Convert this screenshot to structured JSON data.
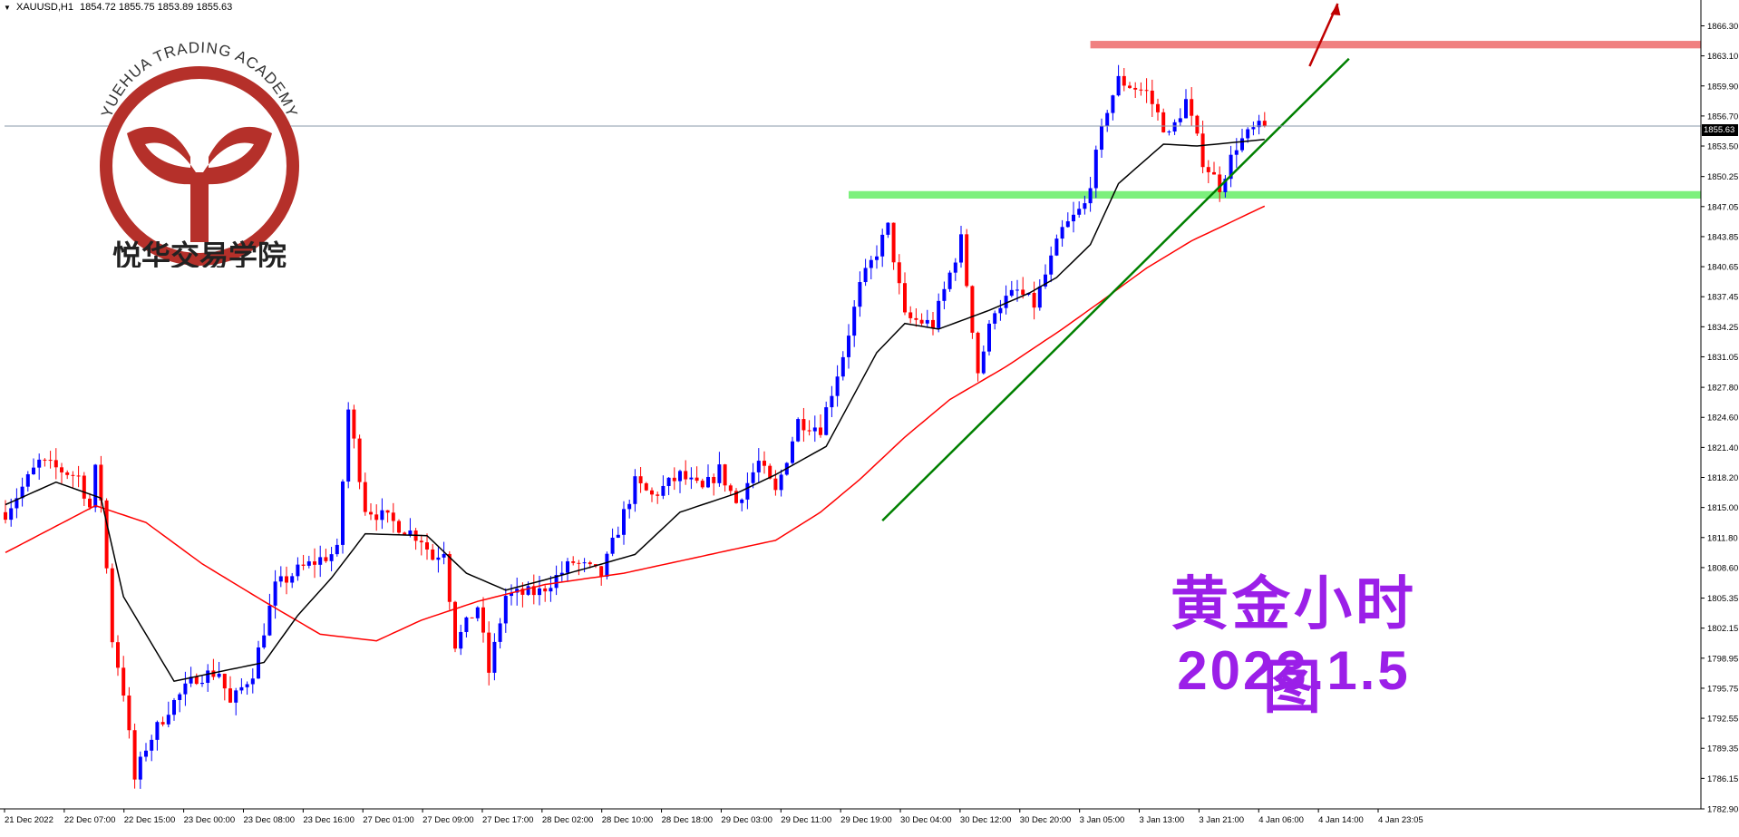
{
  "header": {
    "symbol": "XAUUSD,H1",
    "ohlc": "1854.72 1855.75 1853.89 1855.63"
  },
  "logo": {
    "arc_text": "YUEHUA TRADING ACADEMY",
    "chinese_text": "悦华交易学院",
    "color": "#b5302a"
  },
  "overlay": {
    "title": "黄金小时图",
    "date": "2023.1.5",
    "color": "#9b1fe8"
  },
  "current_price": "1855.63",
  "colors": {
    "bull": "#0000ff",
    "bear": "#ff0000",
    "ma_fast": "#000000",
    "ma_slow": "#ff0000",
    "trendline": "#008000",
    "resistance_zone": "#f08080",
    "support_zone": "#7cf07c",
    "arrow": "#c00000"
  },
  "chart_data": {
    "type": "candlestick",
    "symbol": "XAUUSD",
    "timeframe": "H1",
    "ylim": [
      1782.9,
      1867.7
    ],
    "y_ticks": [
      "1866.30",
      "1863.10",
      "1859.90",
      "1856.70",
      "1853.50",
      "1850.25",
      "1847.05",
      "1843.85",
      "1840.65",
      "1837.45",
      "1834.25",
      "1831.05",
      "1827.80",
      "1824.60",
      "1821.40",
      "1818.20",
      "1815.00",
      "1811.80",
      "1808.60",
      "1805.35",
      "1802.15",
      "1798.95",
      "1795.75",
      "1792.55",
      "1789.35",
      "1786.15",
      "1782.90"
    ],
    "x_labels": [
      "21 Dec 2022",
      "22 Dec 07:00",
      "22 Dec 15:00",
      "23 Dec 00:00",
      "23 Dec 08:00",
      "23 Dec 16:00",
      "27 Dec 01:00",
      "27 Dec 09:00",
      "27 Dec 17:00",
      "28 Dec 02:00",
      "28 Dec 10:00",
      "28 Dec 18:00",
      "29 Dec 03:00",
      "29 Dec 11:00",
      "29 Dec 19:00",
      "30 Dec 04:00",
      "30 Dec 12:00",
      "30 Dec 20:00",
      "3 Jan 05:00",
      "3 Jan 13:00",
      "3 Jan 21:00",
      "4 Jan 06:00",
      "4 Jan 14:00",
      "4 Jan 23:05"
    ],
    "bar_count": 230,
    "anchors": [
      [
        0,
        1814.5
      ],
      [
        6,
        1819.8
      ],
      [
        13,
        1818.3
      ],
      [
        15,
        1815.0
      ],
      [
        16,
        1818.9
      ],
      [
        17,
        1816.0
      ],
      [
        19,
        1801.0
      ],
      [
        21,
        1795.4
      ],
      [
        23,
        1786.0
      ],
      [
        25,
        1789.5
      ],
      [
        29,
        1793.6
      ],
      [
        34,
        1797.0
      ],
      [
        38,
        1797.5
      ],
      [
        40,
        1794.0
      ],
      [
        44,
        1797.5
      ],
      [
        48,
        1806.5
      ],
      [
        52,
        1808.3
      ],
      [
        56,
        1809.5
      ],
      [
        59,
        1810.3
      ],
      [
        61,
        1825.4
      ],
      [
        64,
        1815.0
      ],
      [
        69,
        1813.4
      ],
      [
        74,
        1811.7
      ],
      [
        76,
        1809.6
      ],
      [
        78,
        1810.6
      ],
      [
        80,
        1800.5
      ],
      [
        84,
        1804.5
      ],
      [
        86,
        1797.5
      ],
      [
        89,
        1805.6
      ],
      [
        95,
        1806.0
      ],
      [
        101,
        1809.2
      ],
      [
        106,
        1807.8
      ],
      [
        112,
        1817.6
      ],
      [
        115,
        1816.2
      ],
      [
        120,
        1818.4
      ],
      [
        124,
        1816.8
      ],
      [
        127,
        1819.0
      ],
      [
        130,
        1815.5
      ],
      [
        134,
        1819.8
      ],
      [
        137,
        1816.5
      ],
      [
        141,
        1824.2
      ],
      [
        145,
        1823.5
      ],
      [
        149,
        1831.3
      ],
      [
        152,
        1838.5
      ],
      [
        157,
        1844.8
      ],
      [
        160,
        1835.2
      ],
      [
        165,
        1834.5
      ],
      [
        170,
        1843.5
      ],
      [
        173,
        1829.5
      ],
      [
        176,
        1836.3
      ],
      [
        180,
        1838.0
      ],
      [
        183,
        1836.6
      ],
      [
        188,
        1844.5
      ],
      [
        192,
        1847.2
      ],
      [
        196,
        1857.5
      ],
      [
        198,
        1860.5
      ],
      [
        203,
        1859.2
      ],
      [
        207,
        1854.5
      ],
      [
        210,
        1858.3
      ],
      [
        213,
        1852.0
      ],
      [
        216,
        1849.2
      ],
      [
        219,
        1853.6
      ],
      [
        222,
        1855.2
      ],
      [
        224,
        1855.63
      ]
    ],
    "ma_fast_anchors": [
      [
        0,
        1815.3
      ],
      [
        9,
        1817.7
      ],
      [
        17,
        1816.0
      ],
      [
        21,
        1805.5
      ],
      [
        30,
        1796.5
      ],
      [
        38,
        1797.5
      ],
      [
        46,
        1798.5
      ],
      [
        52,
        1803.5
      ],
      [
        58,
        1807.5
      ],
      [
        64,
        1812.2
      ],
      [
        75,
        1812.0
      ],
      [
        82,
        1808.0
      ],
      [
        89,
        1806.2
      ],
      [
        96,
        1807.3
      ],
      [
        105,
        1808.8
      ],
      [
        112,
        1810.0
      ],
      [
        120,
        1814.5
      ],
      [
        130,
        1816.5
      ],
      [
        137,
        1818.5
      ],
      [
        146,
        1821.5
      ],
      [
        155,
        1831.5
      ],
      [
        160,
        1834.6
      ],
      [
        166,
        1834.0
      ],
      [
        175,
        1836.0
      ],
      [
        182,
        1837.8
      ],
      [
        187,
        1839.5
      ],
      [
        193,
        1843.0
      ],
      [
        198,
        1849.5
      ],
      [
        206,
        1853.7
      ],
      [
        212,
        1853.5
      ],
      [
        224,
        1854.2
      ]
    ],
    "ma_slow_anchors": [
      [
        0,
        1810.2
      ],
      [
        16,
        1815.2
      ],
      [
        25,
        1813.4
      ],
      [
        35,
        1809.0
      ],
      [
        46,
        1805.0
      ],
      [
        56,
        1801.5
      ],
      [
        66,
        1800.8
      ],
      [
        74,
        1803.0
      ],
      [
        84,
        1805.0
      ],
      [
        96,
        1806.8
      ],
      [
        110,
        1808.0
      ],
      [
        120,
        1809.3
      ],
      [
        130,
        1810.6
      ],
      [
        137,
        1811.5
      ],
      [
        145,
        1814.5
      ],
      [
        152,
        1818.0
      ],
      [
        160,
        1822.5
      ],
      [
        168,
        1826.5
      ],
      [
        178,
        1830.0
      ],
      [
        188,
        1834.0
      ],
      [
        195,
        1837.0
      ],
      [
        203,
        1840.5
      ],
      [
        211,
        1843.4
      ],
      [
        224,
        1847.1
      ]
    ],
    "resistance_zone": [
      1863.9,
      1864.7
    ],
    "support_zone": [
      1847.9,
      1848.7
    ],
    "trendline": {
      "from": [
        156,
        1813.6
      ],
      "to": [
        239,
        1862.8
      ]
    }
  }
}
